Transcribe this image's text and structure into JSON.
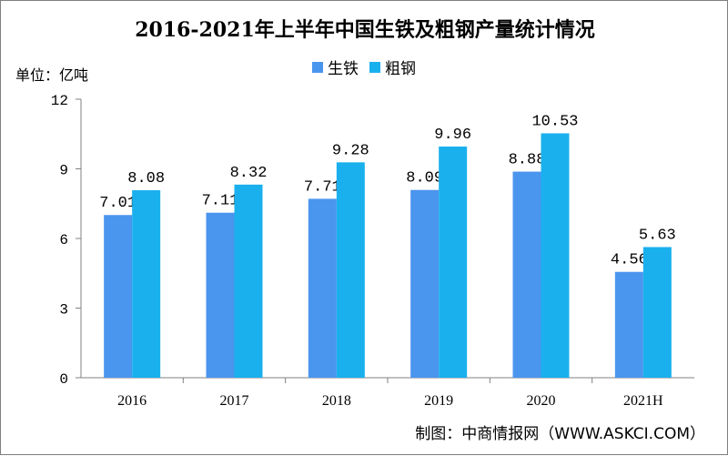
{
  "chart_data": {
    "type": "bar",
    "title": "2016-2021年上半年中国生铁及粗钢产量统计情况",
    "unit_label": "单位：亿吨",
    "categories": [
      "2016",
      "2017",
      "2018",
      "2019",
      "2020",
      "2021H"
    ],
    "series": [
      {
        "name": "生铁",
        "color": "#4a95ee",
        "values": [
          7.01,
          7.11,
          7.71,
          8.09,
          8.88,
          4.56
        ]
      },
      {
        "name": "粗钢",
        "color": "#1ab0ee",
        "values": [
          8.08,
          8.32,
          9.28,
          9.96,
          10.53,
          5.63
        ]
      }
    ],
    "ylim": [
      0,
      12
    ],
    "yticks": [
      0,
      3,
      6,
      9,
      12
    ],
    "legend_position": "top-center",
    "grid": false,
    "source": "制图：中商情报网（WWW.ASKCI.COM）"
  }
}
